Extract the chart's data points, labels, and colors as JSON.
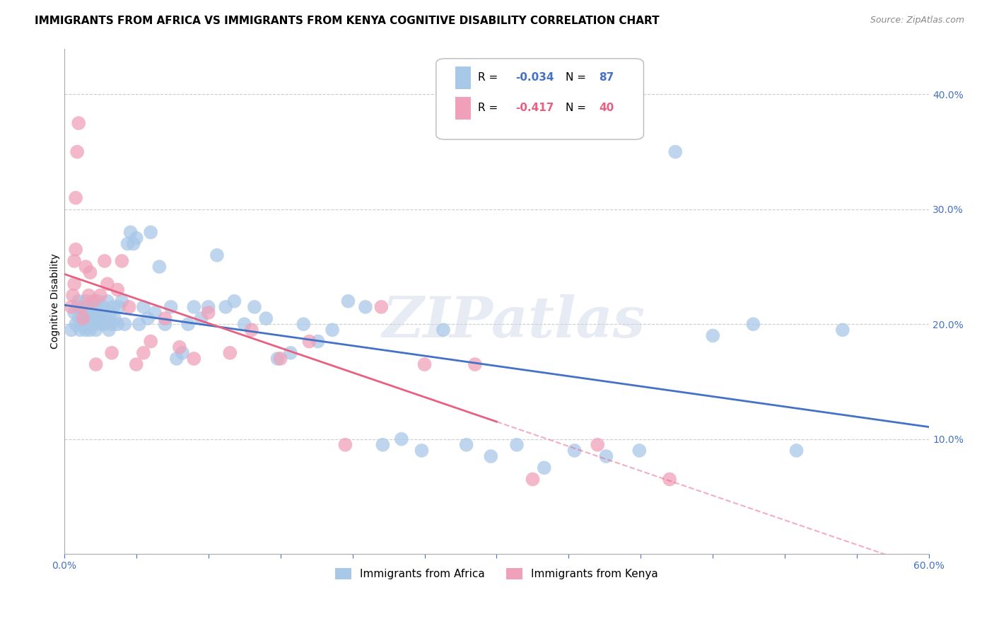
{
  "title": "IMMIGRANTS FROM AFRICA VS IMMIGRANTS FROM KENYA COGNITIVE DISABILITY CORRELATION CHART",
  "source": "Source: ZipAtlas.com",
  "ylabel": "Cognitive Disability",
  "right_yticks": [
    "40.0%",
    "30.0%",
    "20.0%",
    "10.0%"
  ],
  "right_ytick_vals": [
    0.4,
    0.3,
    0.2,
    0.1
  ],
  "xlim": [
    0.0,
    0.6
  ],
  "ylim": [
    0.0,
    0.44
  ],
  "africa_color": "#a8c8e8",
  "kenya_color": "#f0a0b8",
  "africa_line_color": "#4472c4",
  "kenya_line_color": "#e86080",
  "watermark": "ZIPatlas",
  "bg_color": "#ffffff",
  "grid_color": "#cccccc",
  "axis_color": "#4472c4",
  "title_fontsize": 11,
  "label_fontsize": 10,
  "africa_points_x": [
    0.005,
    0.007,
    0.008,
    0.009,
    0.01,
    0.01,
    0.011,
    0.012,
    0.012,
    0.013,
    0.014,
    0.015,
    0.015,
    0.016,
    0.017,
    0.018,
    0.018,
    0.019,
    0.02,
    0.02,
    0.021,
    0.022,
    0.022,
    0.023,
    0.024,
    0.025,
    0.026,
    0.027,
    0.028,
    0.029,
    0.03,
    0.031,
    0.032,
    0.033,
    0.034,
    0.035,
    0.037,
    0.038,
    0.04,
    0.042,
    0.044,
    0.046,
    0.048,
    0.05,
    0.052,
    0.055,
    0.058,
    0.06,
    0.063,
    0.066,
    0.07,
    0.074,
    0.078,
    0.082,
    0.086,
    0.09,
    0.095,
    0.1,
    0.106,
    0.112,
    0.118,
    0.125,
    0.132,
    0.14,
    0.148,
    0.157,
    0.166,
    0.176,
    0.186,
    0.197,
    0.209,
    0.221,
    0.234,
    0.248,
    0.263,
    0.279,
    0.296,
    0.314,
    0.333,
    0.354,
    0.376,
    0.399,
    0.424,
    0.45,
    0.478,
    0.508,
    0.54
  ],
  "africa_points_y": [
    0.195,
    0.21,
    0.2,
    0.215,
    0.205,
    0.22,
    0.195,
    0.21,
    0.2,
    0.215,
    0.205,
    0.22,
    0.195,
    0.2,
    0.215,
    0.205,
    0.195,
    0.21,
    0.215,
    0.2,
    0.205,
    0.215,
    0.195,
    0.22,
    0.205,
    0.2,
    0.21,
    0.215,
    0.2,
    0.205,
    0.22,
    0.195,
    0.21,
    0.2,
    0.215,
    0.205,
    0.2,
    0.215,
    0.22,
    0.2,
    0.27,
    0.28,
    0.27,
    0.275,
    0.2,
    0.215,
    0.205,
    0.28,
    0.21,
    0.25,
    0.2,
    0.215,
    0.17,
    0.175,
    0.2,
    0.215,
    0.205,
    0.215,
    0.26,
    0.215,
    0.22,
    0.2,
    0.215,
    0.205,
    0.17,
    0.175,
    0.2,
    0.185,
    0.195,
    0.22,
    0.215,
    0.095,
    0.1,
    0.09,
    0.195,
    0.095,
    0.085,
    0.095,
    0.075,
    0.09,
    0.085,
    0.09,
    0.35,
    0.19,
    0.2,
    0.09,
    0.195
  ],
  "kenya_points_x": [
    0.005,
    0.006,
    0.007,
    0.007,
    0.008,
    0.008,
    0.009,
    0.01,
    0.012,
    0.013,
    0.015,
    0.017,
    0.018,
    0.02,
    0.022,
    0.025,
    0.028,
    0.03,
    0.033,
    0.037,
    0.04,
    0.045,
    0.05,
    0.055,
    0.06,
    0.07,
    0.08,
    0.09,
    0.1,
    0.115,
    0.13,
    0.15,
    0.17,
    0.195,
    0.22,
    0.25,
    0.285,
    0.325,
    0.37,
    0.42
  ],
  "kenya_points_y": [
    0.215,
    0.225,
    0.235,
    0.255,
    0.265,
    0.31,
    0.35,
    0.375,
    0.215,
    0.205,
    0.25,
    0.225,
    0.245,
    0.22,
    0.165,
    0.225,
    0.255,
    0.235,
    0.175,
    0.23,
    0.255,
    0.215,
    0.165,
    0.175,
    0.185,
    0.205,
    0.18,
    0.17,
    0.21,
    0.175,
    0.195,
    0.17,
    0.185,
    0.095,
    0.215,
    0.165,
    0.165,
    0.065,
    0.095,
    0.065
  ],
  "legend_africa_r": "-0.034",
  "legend_africa_n": "87",
  "legend_kenya_r": "-0.417",
  "legend_kenya_n": "40"
}
